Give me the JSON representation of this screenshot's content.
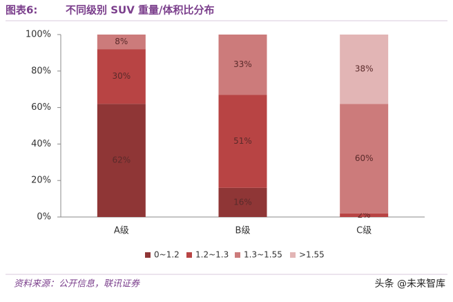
{
  "chart_data": {
    "type": "stacked_bar",
    "title_prefix": "图表6:",
    "title": "不同级别 SUV 重量/体积比分布",
    "categories": [
      "A级",
      "B级",
      "C级"
    ],
    "series": [
      {
        "name": "0~1.2",
        "color": "#8f3636",
        "values": [
          62,
          16,
          null
        ],
        "value_labels": [
          "62%",
          "16%",
          null
        ]
      },
      {
        "name": "1.2~1.3",
        "color": "#b84444",
        "values": [
          30,
          51,
          2
        ],
        "value_labels": [
          "30%",
          "51%",
          "2%"
        ]
      },
      {
        "name": "1.3~1.55",
        "color": "#cc7b7b",
        "values": [
          8,
          33,
          60
        ],
        "value_labels": [
          "8%",
          "33%",
          "60%"
        ]
      },
      {
        "name": ">1.55",
        "color": "#e2b5b5",
        "values": [
          null,
          null,
          38
        ],
        "value_labels": [
          null,
          null,
          "38%"
        ]
      }
    ],
    "ylim": [
      0,
      100
    ],
    "yticks": [
      {
        "value": 0,
        "label": "0%"
      },
      {
        "value": 20,
        "label": "20%"
      },
      {
        "value": 40,
        "label": "40%"
      },
      {
        "value": 60,
        "label": "60%"
      },
      {
        "value": 80,
        "label": "80%"
      },
      {
        "value": 100,
        "label": "100%"
      }
    ],
    "legend": "bottom",
    "source": "资料来源：公开信息，联讯证券",
    "watermark": "头条 @未来智库"
  }
}
